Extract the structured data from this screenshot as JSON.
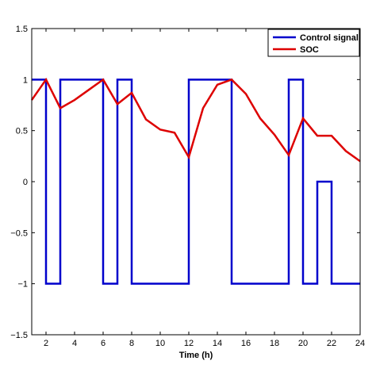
{
  "chart_data": {
    "type": "line",
    "xlabel": "Time (h)",
    "xlim": [
      1,
      24
    ],
    "ylim": [
      -1.5,
      1.5
    ],
    "xticks": [
      2,
      4,
      6,
      8,
      10,
      12,
      14,
      16,
      18,
      20,
      22,
      24
    ],
    "xtick_labels": [
      "2",
      "4",
      "6",
      "8",
      "10",
      "12",
      "14",
      "16",
      "18",
      "20",
      "22",
      "24"
    ],
    "yticks": [
      -1.5,
      -1,
      -0.5,
      0,
      0.5,
      1,
      1.5
    ],
    "ytick_labels": [
      "−1.5",
      "−1",
      "−0.5",
      "0",
      "0.5",
      "1",
      "1.5"
    ],
    "legend_position": "top-right",
    "series": [
      {
        "name": "Control signal",
        "color": "#0000cc",
        "x": [
          1,
          2,
          2,
          3,
          3,
          6,
          6,
          7,
          7,
          8,
          8,
          12,
          12,
          15,
          15,
          19,
          19,
          20,
          20,
          21,
          21,
          22,
          22,
          24
        ],
        "y": [
          1,
          1,
          -1,
          -1,
          1,
          1,
          -1,
          -1,
          1,
          1,
          -1,
          -1,
          1,
          1,
          -1,
          -1,
          1,
          1,
          -1,
          -1,
          0,
          0,
          -1,
          -1
        ]
      },
      {
        "name": "SOC",
        "color": "#dd0000",
        "x": [
          1,
          2,
          3,
          4,
          5,
          6,
          7,
          8,
          9,
          10,
          11,
          12,
          13,
          14,
          15,
          16,
          17,
          18,
          19,
          20,
          21,
          22,
          23,
          24
        ],
        "y": [
          0.8,
          1.0,
          0.72,
          0.8,
          0.9,
          1.0,
          0.76,
          0.87,
          0.61,
          0.51,
          0.48,
          0.24,
          0.72,
          0.95,
          1.0,
          0.86,
          0.62,
          0.46,
          0.26,
          0.62,
          0.45,
          0.45,
          0.3,
          0.2
        ]
      }
    ]
  }
}
